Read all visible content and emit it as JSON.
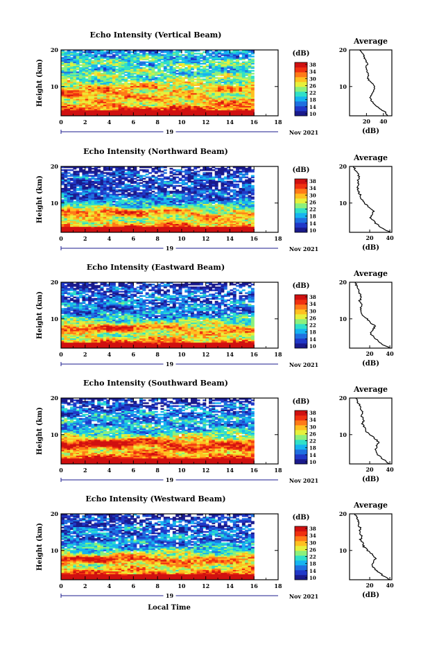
{
  "figure": {
    "xlabel": "Local Time",
    "date_label": "Nov 2021",
    "day_label": "19",
    "colorbar_unit": "(dB)",
    "colorbar_ticks": [
      "10",
      "14",
      "18",
      "22",
      "26",
      "30",
      "34",
      "38"
    ],
    "colormap": [
      "#1a1a8c",
      "#2038c8",
      "#1f70e0",
      "#16b4f0",
      "#30e0c8",
      "#8cf07c",
      "#e6f03c",
      "#ffc020",
      "#ff7a18",
      "#f03010",
      "#d01010"
    ]
  },
  "chart_data": [
    {
      "type": "heatmap",
      "title": "Echo Intensity (Vertical Beam)",
      "ylabel": "Height (km)",
      "xlim": [
        0,
        18
      ],
      "ylim": [
        2,
        20
      ],
      "xticks": [
        0,
        2,
        4,
        6,
        8,
        10,
        12,
        14,
        16,
        18
      ],
      "yticks": [
        10,
        20
      ],
      "time_range": [
        0,
        16
      ],
      "clim": [
        10,
        38
      ],
      "profile": {
        "title": "Average",
        "xlabel": "(dB)",
        "xlim": [
          0,
          50
        ],
        "xticks": [
          20,
          40
        ],
        "yticks": [
          10,
          20
        ],
        "height": [
          2,
          3,
          4,
          5,
          6,
          7,
          8,
          9,
          10,
          11,
          12,
          13,
          14,
          15,
          16,
          17,
          18,
          19,
          20
        ],
        "db": [
          46,
          42,
          36,
          30,
          26,
          24,
          26,
          29,
          30,
          26,
          22,
          22,
          21,
          19,
          21,
          20,
          17,
          16,
          12
        ]
      }
    },
    {
      "type": "heatmap",
      "title": "Echo Intensity (Northward Beam)",
      "ylabel": "Height (km)",
      "xlim": [
        0,
        18
      ],
      "ylim": [
        2,
        20
      ],
      "xticks": [
        0,
        2,
        4,
        6,
        8,
        10,
        12,
        14,
        16,
        18
      ],
      "yticks": [
        10,
        20
      ],
      "time_range": [
        0,
        16
      ],
      "clim": [
        10,
        38
      ],
      "profile": {
        "title": "Average",
        "xlabel": "(dB)",
        "xlim": [
          0,
          42
        ],
        "xticks": [
          20,
          40
        ],
        "yticks": [
          10,
          20
        ],
        "height": [
          2,
          3,
          4,
          5,
          6,
          7,
          8,
          9,
          10,
          11,
          12,
          13,
          14,
          15,
          16,
          17,
          18,
          19,
          20
        ],
        "db": [
          40,
          33,
          28,
          24,
          21,
          22,
          24,
          19,
          15,
          12,
          11,
          9,
          8,
          9,
          8,
          10,
          8,
          6,
          4
        ]
      }
    },
    {
      "type": "heatmap",
      "title": "Echo Intensity (Eastward Beam)",
      "ylabel": "Height (km)",
      "xlim": [
        0,
        18
      ],
      "ylim": [
        2,
        20
      ],
      "xticks": [
        0,
        2,
        4,
        6,
        8,
        10,
        12,
        14,
        16,
        18
      ],
      "yticks": [
        10,
        20
      ],
      "time_range": [
        0,
        16
      ],
      "clim": [
        10,
        38
      ],
      "profile": {
        "title": "Average",
        "xlabel": "(dB)",
        "xlim": [
          0,
          42
        ],
        "xticks": [
          20,
          40
        ],
        "yticks": [
          10,
          20
        ],
        "height": [
          2,
          3,
          4,
          5,
          6,
          7,
          8,
          9,
          10,
          11,
          12,
          13,
          14,
          15,
          16,
          17,
          18,
          19,
          20
        ],
        "db": [
          40,
          33,
          28,
          24,
          21,
          23,
          25,
          21,
          17,
          13,
          12,
          11,
          12,
          10,
          12,
          10,
          9,
          7,
          6
        ]
      }
    },
    {
      "type": "heatmap",
      "title": "Echo Intensity (Southward Beam)",
      "ylabel": "Height (km)",
      "xlim": [
        0,
        18
      ],
      "ylim": [
        2,
        20
      ],
      "xticks": [
        0,
        2,
        4,
        6,
        8,
        10,
        12,
        14,
        16,
        18
      ],
      "yticks": [
        10,
        20
      ],
      "time_range": [
        0,
        16
      ],
      "clim": [
        10,
        38
      ],
      "profile": {
        "title": "Average",
        "xlabel": "(dB)",
        "xlim": [
          0,
          42
        ],
        "xticks": [
          20,
          40
        ],
        "yticks": [
          10,
          20
        ],
        "height": [
          2,
          3,
          4,
          5,
          6,
          7,
          8,
          9,
          10,
          11,
          12,
          13,
          14,
          15,
          16,
          17,
          18,
          19,
          20
        ],
        "db": [
          40,
          35,
          30,
          27,
          26,
          27,
          29,
          25,
          20,
          16,
          15,
          13,
          14,
          12,
          13,
          11,
          10,
          8,
          6
        ]
      }
    },
    {
      "type": "heatmap",
      "title": "Echo Intensity (Westward Beam)",
      "ylabel": "Height (km)",
      "xlim": [
        0,
        18
      ],
      "ylim": [
        2,
        20
      ],
      "xticks": [
        0,
        2,
        4,
        6,
        8,
        10,
        12,
        14,
        16,
        18
      ],
      "yticks": [
        10,
        20
      ],
      "time_range": [
        0,
        16
      ],
      "clim": [
        10,
        38
      ],
      "profile": {
        "title": "Average",
        "xlabel": "(dB)",
        "xlim": [
          0,
          42
        ],
        "xticks": [
          20,
          40
        ],
        "yticks": [
          10,
          20
        ],
        "height": [
          2,
          3,
          4,
          5,
          6,
          7,
          8,
          9,
          10,
          11,
          12,
          13,
          14,
          15,
          16,
          17,
          18,
          19,
          20
        ],
        "db": [
          40,
          34,
          29,
          25,
          22,
          24,
          26,
          22,
          18,
          14,
          13,
          11,
          12,
          10,
          11,
          9,
          9,
          7,
          5
        ]
      }
    }
  ]
}
